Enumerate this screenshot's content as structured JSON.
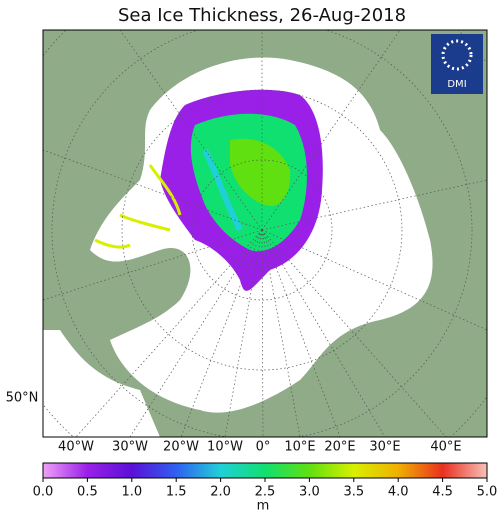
{
  "title": "Sea Ice Thickness, 26-Aug-2018",
  "logo": "DMI",
  "lat_labels": [
    "50°N"
  ],
  "lon_labels": [
    "40°W",
    "30°W",
    "20°W",
    "10°W",
    "0°",
    "10°E",
    "20°E",
    "30°E",
    "40°E"
  ],
  "colorbar": {
    "range": [
      0,
      5
    ],
    "unit": "m",
    "colors": [
      "#f0a0f8",
      "#9a20e8",
      "#5a10d8",
      "#3060f0",
      "#20d0d8",
      "#10e070",
      "#60e010",
      "#d8f000",
      "#f0b000",
      "#e83020",
      "#f8c0b8"
    ],
    "ticks": [
      {
        "value": 0,
        "label": "0.0"
      },
      {
        "value": 0.5,
        "label": "0.5"
      },
      {
        "value": 1,
        "label": "1.0"
      },
      {
        "value": 1.5,
        "label": "1.5"
      },
      {
        "value": 2,
        "label": "2.0"
      },
      {
        "value": 2.5,
        "label": "2.5"
      },
      {
        "value": 3,
        "label": "3.0"
      },
      {
        "value": 3.5,
        "label": "3.5"
      },
      {
        "value": 4,
        "label": "4.0"
      },
      {
        "value": 4.5,
        "label": "4.5"
      },
      {
        "value": 5,
        "label": "5.0"
      }
    ]
  }
}
